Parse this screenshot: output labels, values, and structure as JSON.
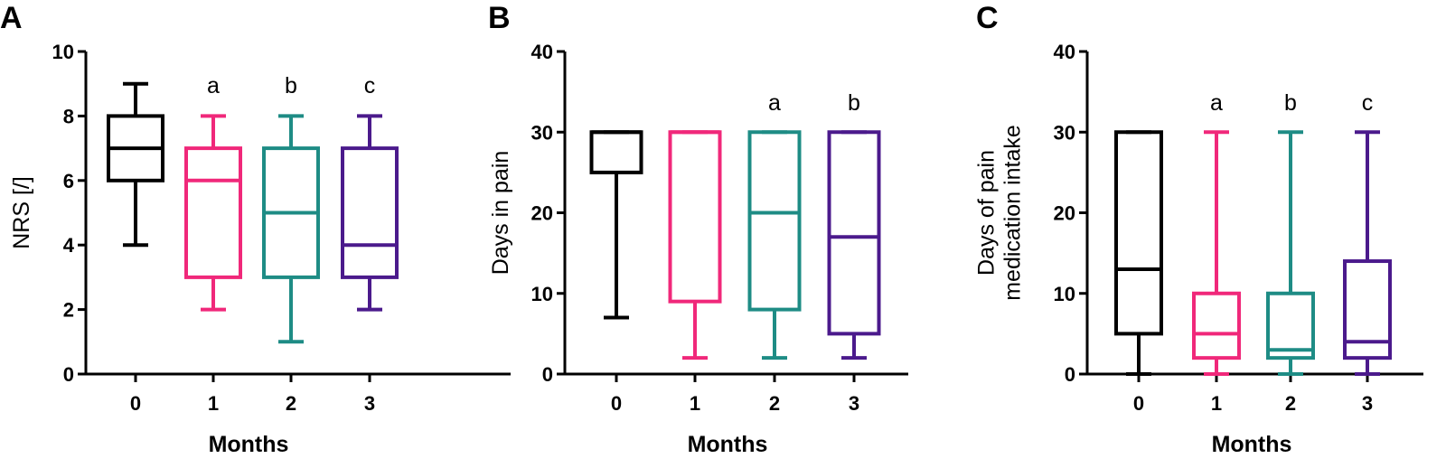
{
  "chart_data": [
    {
      "type": "box",
      "panel": "A",
      "xlabel": "Months",
      "ylabel": "NRS [/]",
      "ylim": [
        0,
        10
      ],
      "yticks": [
        0,
        2,
        4,
        6,
        8,
        10
      ],
      "categories": [
        "0",
        "1",
        "2",
        "3"
      ],
      "colors": [
        "#000000",
        "#f0287a",
        "#1e8c85",
        "#4b1a8c"
      ],
      "boxes": [
        {
          "min": 4,
          "q1": 6,
          "median": 7,
          "q3": 8,
          "max": 9,
          "sig": ""
        },
        {
          "min": 2,
          "q1": 3,
          "median": 6,
          "q3": 7,
          "max": 8,
          "sig": "a"
        },
        {
          "min": 1,
          "q1": 3,
          "median": 5,
          "q3": 7,
          "max": 8,
          "sig": "b"
        },
        {
          "min": 2,
          "q1": 3,
          "median": 4,
          "q3": 7,
          "max": 8,
          "sig": "c"
        }
      ]
    },
    {
      "type": "box",
      "panel": "B",
      "xlabel": "Months",
      "ylabel": "Days in pain",
      "ylim": [
        0,
        40
      ],
      "yticks": [
        0,
        10,
        20,
        30,
        40
      ],
      "categories": [
        "0",
        "1",
        "2",
        "3"
      ],
      "colors": [
        "#000000",
        "#f0287a",
        "#1e8c85",
        "#4b1a8c"
      ],
      "boxes": [
        {
          "min": 7,
          "q1": 25,
          "median": 30,
          "q3": 30,
          "max": 30,
          "sig": ""
        },
        {
          "min": 2,
          "q1": 9,
          "median": 30,
          "q3": 30,
          "max": 30,
          "sig": ""
        },
        {
          "min": 2,
          "q1": 8,
          "median": 20,
          "q3": 30,
          "max": 30,
          "sig": "a"
        },
        {
          "min": 2,
          "q1": 5,
          "median": 17,
          "q3": 30,
          "max": 30,
          "sig": "b"
        }
      ]
    },
    {
      "type": "box",
      "panel": "C",
      "xlabel": "Months",
      "ylabel": "Days of pain\nmedication intake",
      "ylim": [
        0,
        40
      ],
      "yticks": [
        0,
        10,
        20,
        30,
        40
      ],
      "categories": [
        "0",
        "1",
        "2",
        "3"
      ],
      "colors": [
        "#000000",
        "#f0287a",
        "#1e8c85",
        "#4b1a8c"
      ],
      "boxes": [
        {
          "min": 0,
          "q1": 5,
          "median": 13,
          "q3": 30,
          "max": 30,
          "sig": ""
        },
        {
          "min": 0,
          "q1": 2,
          "median": 5,
          "q3": 10,
          "max": 30,
          "sig": "a"
        },
        {
          "min": 0,
          "q1": 2,
          "median": 3,
          "q3": 10,
          "max": 30,
          "sig": "b"
        },
        {
          "min": 0,
          "q1": 2,
          "median": 4,
          "q3": 14,
          "max": 30,
          "sig": "c"
        }
      ]
    }
  ]
}
